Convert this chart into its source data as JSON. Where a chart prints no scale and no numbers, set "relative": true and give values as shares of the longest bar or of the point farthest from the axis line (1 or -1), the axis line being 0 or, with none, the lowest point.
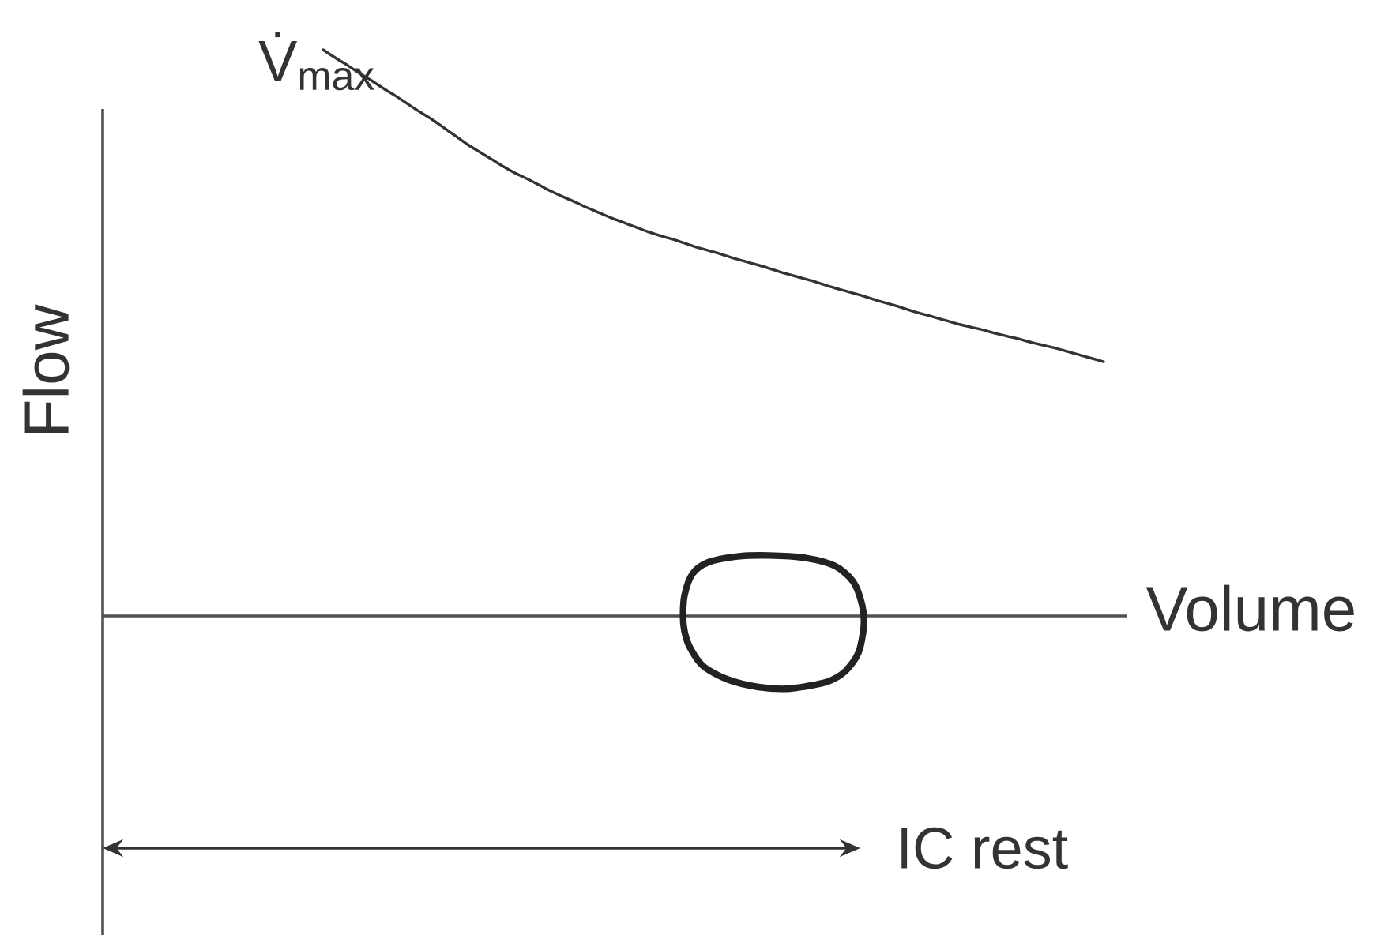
{
  "chart_data": {
    "type": "line",
    "relative": true,
    "xlabel": "Volume",
    "ylabel": "Flow",
    "marker": "none",
    "line_style": "solid",
    "categories": [
      null,
      null,
      null,
      null,
      null,
      null,
      null,
      null,
      null,
      null,
      null,
      null,
      null,
      null,
      null,
      null,
      null,
      null,
      null,
      null,
      null,
      null,
      null,
      null,
      null,
      null,
      null,
      null,
      null,
      null,
      null,
      null,
      null,
      null,
      null,
      null,
      null,
      null,
      null,
      null,
      null,
      null,
      null,
      null,
      null,
      null,
      null,
      null,
      null,
      null,
      null,
      null,
      null,
      null,
      null,
      null,
      null,
      null,
      null,
      null,
      null,
      null,
      null,
      null,
      null,
      null
    ],
    "series": [
      {
        "name": "V̇$_{max}$",
        "color": "#333333",
        "values": [
          1.0,
          0.986,
          0.973,
          0.959,
          0.946,
          0.932,
          0.919,
          0.905,
          0.891,
          0.878,
          0.863,
          0.848,
          0.833,
          0.82,
          0.807,
          0.794,
          0.782,
          0.772,
          0.761,
          0.75,
          0.74,
          0.731,
          0.721,
          0.712,
          0.703,
          0.695,
          0.687,
          0.679,
          0.672,
          0.666,
          0.659,
          0.652,
          0.646,
          0.64,
          0.633,
          0.627,
          0.621,
          0.615,
          0.608,
          0.602,
          0.596,
          0.59,
          0.583,
          0.577,
          0.571,
          0.565,
          0.558,
          0.552,
          0.546,
          0.539,
          0.533,
          0.527,
          0.521,
          0.515,
          0.51,
          0.505,
          0.499,
          0.494,
          0.489,
          0.483,
          0.478,
          0.473,
          0.467,
          0.461,
          0.455,
          0.449
        ]
      }
    ],
    "annotations": [
      "IC rest"
    ]
  }
}
